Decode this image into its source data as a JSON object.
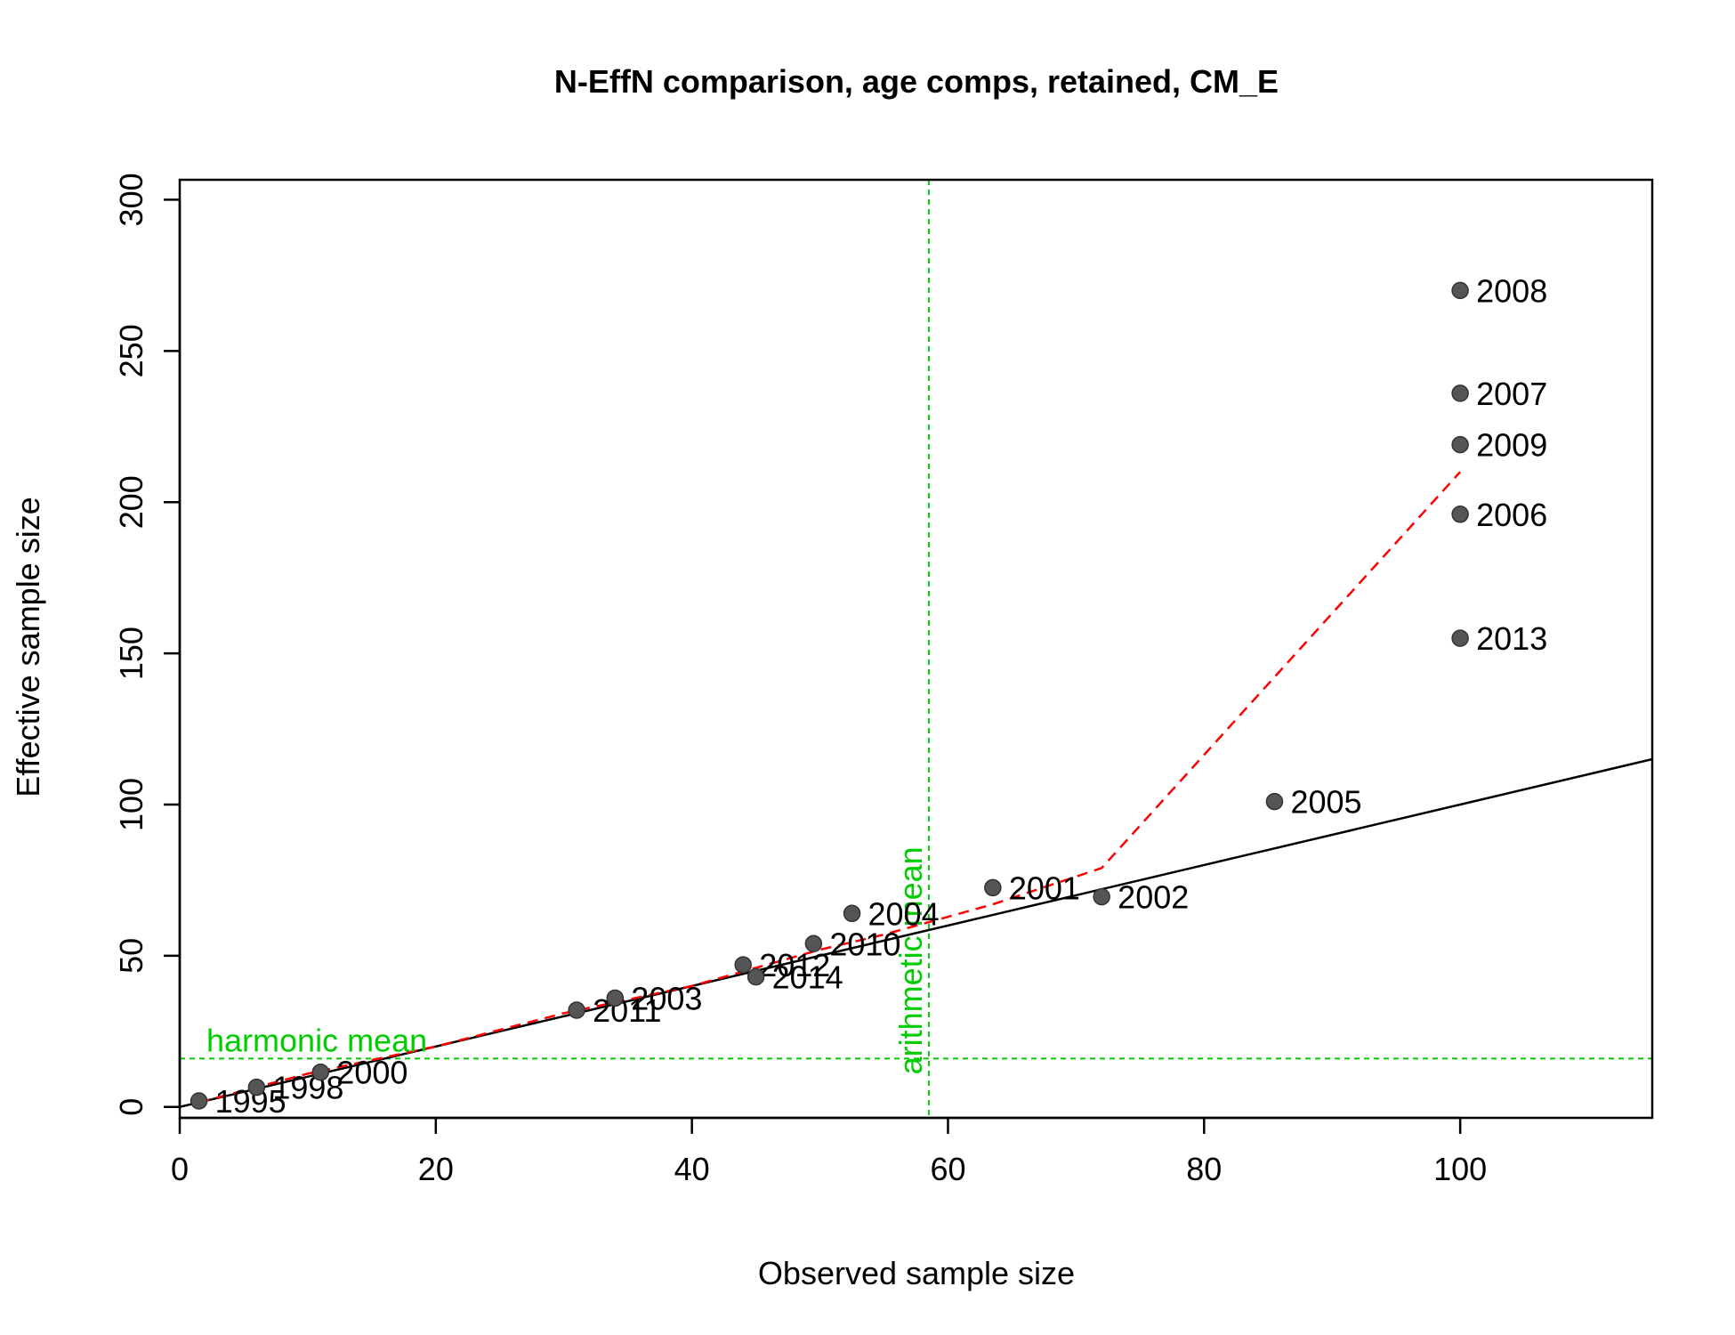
{
  "chart_data": {
    "type": "scatter",
    "title": "N-EffN comparison, age comps, retained, CM_E",
    "xlabel": "Observed sample size",
    "ylabel": "Effective sample size",
    "xlim": [
      0,
      115
    ],
    "ylim": [
      0,
      300
    ],
    "xticks": [
      "0",
      "20",
      "40",
      "60",
      "80",
      "100"
    ],
    "yticks": [
      "0",
      "50",
      "100",
      "150",
      "200",
      "250",
      "300"
    ],
    "grid": false,
    "points": [
      {
        "label": "1995",
        "x": 1.5,
        "y": 2
      },
      {
        "label": "1998",
        "x": 6,
        "y": 6.5
      },
      {
        "label": "2000",
        "x": 11,
        "y": 11.5
      },
      {
        "label": "2011",
        "x": 31,
        "y": 32
      },
      {
        "label": "2003",
        "x": 34,
        "y": 36
      },
      {
        "label": "2012",
        "x": 44,
        "y": 47
      },
      {
        "label": "2014",
        "x": 45,
        "y": 43
      },
      {
        "label": "2010",
        "x": 49.5,
        "y": 54
      },
      {
        "label": "2004",
        "x": 52.5,
        "y": 64
      },
      {
        "label": "2001",
        "x": 63.5,
        "y": 72.5
      },
      {
        "label": "2002",
        "x": 72,
        "y": 69.5
      },
      {
        "label": "2005",
        "x": 85.5,
        "y": 101
      },
      {
        "label": "2013",
        "x": 100,
        "y": 155
      },
      {
        "label": "2006",
        "x": 100,
        "y": 196
      },
      {
        "label": "2009",
        "x": 100,
        "y": 219
      },
      {
        "label": "2007",
        "x": 100,
        "y": 236
      },
      {
        "label": "2008",
        "x": 100,
        "y": 270
      }
    ],
    "identity_line": {
      "x": [
        0,
        115
      ],
      "y": [
        0,
        115
      ]
    },
    "smoother": {
      "x": [
        1.5,
        10,
        20,
        30,
        40,
        50,
        55,
        63.5,
        72,
        100
      ],
      "y": [
        1.5,
        11,
        20,
        31,
        40,
        52,
        57,
        67,
        79,
        210
      ]
    },
    "harmonic_mean": {
      "label": "harmonic mean",
      "value": 16
    },
    "arithmetic_mean": {
      "label": "arithmetic mean",
      "value": 58.5
    },
    "colors": {
      "points": "#555555",
      "identity_line": "#000000",
      "smoother": "#ff0000",
      "reference_lines": "#00cc00"
    }
  }
}
